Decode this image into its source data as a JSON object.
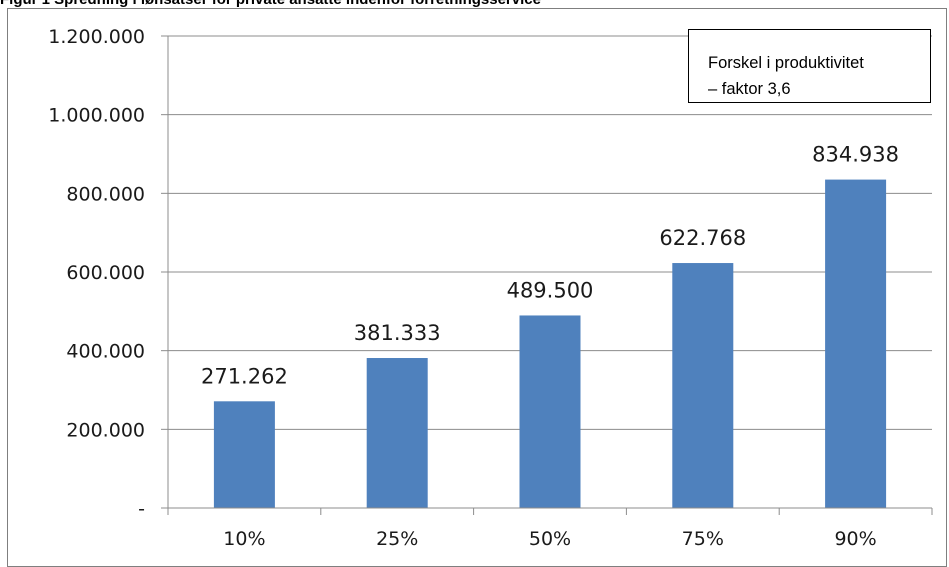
{
  "chart_data": {
    "type": "bar",
    "title": "Figur 1 Spredning i lønsatser for private ansatte indenfor forretningsservice",
    "categories": [
      "10%",
      "25%",
      "50%",
      "75%",
      "90%"
    ],
    "values": [
      271262,
      381333,
      489500,
      622768,
      834938
    ],
    "value_labels": [
      "271.262",
      "381.333",
      "489.500",
      "622.768",
      "834.938"
    ],
    "ylim": [
      0,
      1200000
    ],
    "yticks": [
      0,
      200000,
      400000,
      600000,
      800000,
      1000000,
      1200000
    ],
    "ytick_labels": [
      "-",
      "200.000",
      "400.000",
      "600.000",
      "800.000",
      "1.000.000",
      "1.200.000"
    ],
    "grid": true,
    "bar_color": "#4f81bd",
    "annotation": {
      "line1": "Forskel i produktivitet",
      "line2": "– faktor 3,6"
    }
  }
}
